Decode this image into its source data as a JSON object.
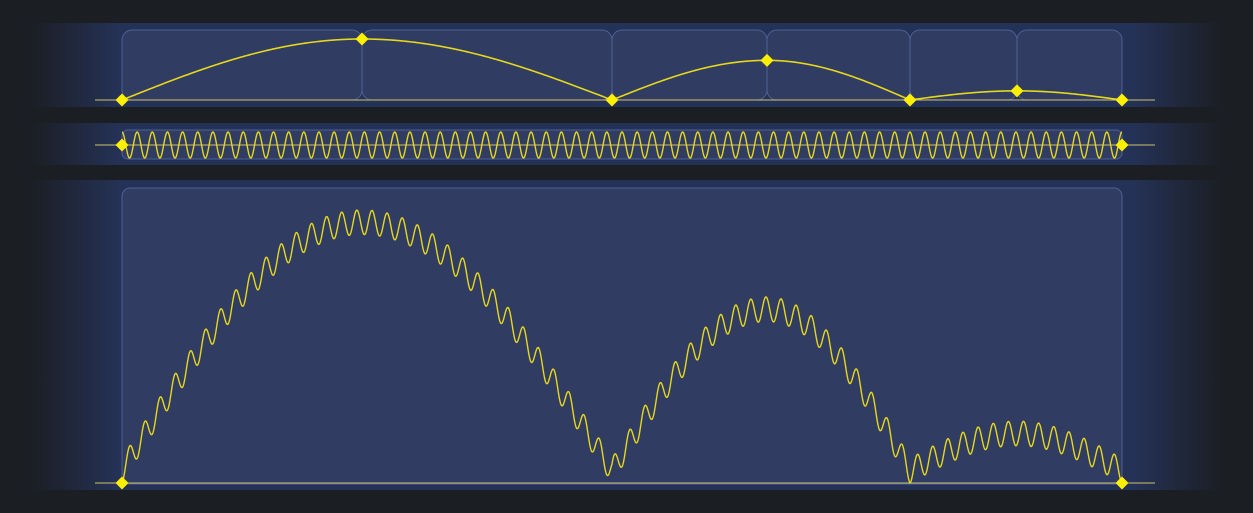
{
  "colors": {
    "background": "#1b1e23",
    "panel_bg": "#253257",
    "panel_edge": "#1b1e23",
    "inner_box": "#313c62",
    "inner_border": "#4e5f95",
    "curve": "#e6d81c",
    "marker": "#ffef00",
    "baseline": "#cfc26a"
  },
  "chart_data": [
    {
      "type": "line",
      "name": "envelope",
      "x_range": [
        0,
        1
      ],
      "y_range": [
        0,
        1
      ],
      "control_points": [
        {
          "x": 0.0,
          "y": 0.0
        },
        {
          "x": 0.24,
          "y": 1.0
        },
        {
          "x": 0.49,
          "y": 0.0
        },
        {
          "x": 0.645,
          "y": 0.65
        },
        {
          "x": 0.788,
          "y": 0.0
        },
        {
          "x": 0.895,
          "y": 0.15
        },
        {
          "x": 1.0,
          "y": 0.0
        }
      ],
      "segment_boundaries": [
        0.0,
        0.24,
        0.49,
        0.645,
        0.788,
        0.895,
        1.0
      ]
    },
    {
      "type": "line",
      "name": "carrier",
      "x_range": [
        0,
        1
      ],
      "y_range": [
        -1,
        1
      ],
      "cycles": 66,
      "control_points": [
        {
          "x": 0.0,
          "y": 0.0
        },
        {
          "x": 1.0,
          "y": 0.0
        }
      ]
    },
    {
      "type": "line",
      "name": "modulated-output",
      "x_range": [
        0,
        1
      ],
      "y_range": [
        0,
        1
      ],
      "carrier_cycles": 66,
      "ripple_amplitude": 0.09,
      "control_points": [
        {
          "x": 0.0,
          "y": 0.0
        },
        {
          "x": 1.0,
          "y": 0.0
        }
      ]
    }
  ]
}
